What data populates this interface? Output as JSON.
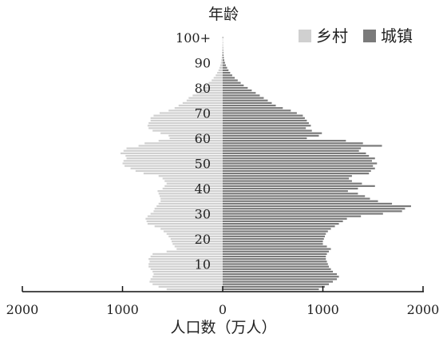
{
  "chart_data": {
    "type": "bar",
    "orientation": "horizontal-population-pyramid",
    "ylabel": "年龄",
    "xlabel": "人口数（万人）",
    "xlim": [
      -2000,
      2000
    ],
    "x_ticks": [
      {
        "value": -2000,
        "label": "2000"
      },
      {
        "value": -1000,
        "label": "1000"
      },
      {
        "value": 0,
        "label": "0"
      },
      {
        "value": 1000,
        "label": "1000"
      },
      {
        "value": 2000,
        "label": "2000"
      }
    ],
    "y_ticks": [
      {
        "value": 10,
        "label": "10"
      },
      {
        "value": 20,
        "label": "20"
      },
      {
        "value": 30,
        "label": "30"
      },
      {
        "value": 40,
        "label": "40"
      },
      {
        "value": 50,
        "label": "50"
      },
      {
        "value": 60,
        "label": "60"
      },
      {
        "value": 70,
        "label": "70"
      },
      {
        "value": 80,
        "label": "80"
      },
      {
        "value": 90,
        "label": "90"
      },
      {
        "value": 100,
        "label": "100+"
      }
    ],
    "legend_position": "top-right",
    "ages": [
      0,
      1,
      2,
      3,
      4,
      5,
      6,
      7,
      8,
      9,
      10,
      11,
      12,
      13,
      14,
      15,
      16,
      17,
      18,
      19,
      20,
      21,
      22,
      23,
      24,
      25,
      26,
      27,
      28,
      29,
      30,
      31,
      32,
      33,
      34,
      35,
      36,
      37,
      38,
      39,
      40,
      41,
      42,
      43,
      44,
      45,
      46,
      47,
      48,
      49,
      50,
      51,
      52,
      53,
      54,
      55,
      56,
      57,
      58,
      59,
      60,
      61,
      62,
      63,
      64,
      65,
      66,
      67,
      68,
      69,
      70,
      71,
      72,
      73,
      74,
      75,
      76,
      77,
      78,
      79,
      80,
      81,
      82,
      83,
      84,
      85,
      86,
      87,
      88,
      89,
      90,
      91,
      92,
      93,
      94,
      95,
      96,
      97,
      98,
      99,
      100
    ],
    "series": [
      {
        "name": "乡村",
        "color": "#d0d0d0",
        "side": "left",
        "values": [
          560,
          640,
          700,
          730,
          720,
          700,
          690,
          700,
          720,
          740,
          740,
          730,
          740,
          720,
          700,
          560,
          460,
          480,
          500,
          510,
          520,
          540,
          560,
          590,
          620,
          680,
          750,
          760,
          770,
          750,
          720,
          690,
          680,
          660,
          640,
          620,
          620,
          630,
          640,
          650,
          600,
          580,
          560,
          580,
          600,
          640,
          790,
          870,
          920,
          980,
          1000,
          990,
          960,
          970,
          1020,
          990,
          960,
          840,
          780,
          640,
          530,
          540,
          620,
          700,
          740,
          750,
          740,
          720,
          720,
          690,
          630,
          540,
          480,
          440,
          400,
          360,
          340,
          300,
          260,
          230,
          200,
          170,
          140,
          110,
          90,
          70,
          55,
          42,
          32,
          24,
          18,
          14,
          10,
          8,
          6,
          5,
          4,
          3,
          2,
          2,
          5
        ]
      },
      {
        "name": "城镇",
        "color": "#7a7a7a",
        "side": "right",
        "values": [
          960,
          1020,
          1060,
          1100,
          1140,
          1160,
          1140,
          1100,
          1080,
          1060,
          1050,
          1040,
          1030,
          1030,
          1040,
          1060,
          1080,
          1040,
          1000,
          1000,
          1010,
          1020,
          1030,
          1050,
          1080,
          1120,
          1160,
          1200,
          1240,
          1380,
          1600,
          1790,
          1820,
          1880,
          1690,
          1550,
          1470,
          1420,
          1350,
          1250,
          1350,
          1520,
          1390,
          1290,
          1260,
          1290,
          1460,
          1480,
          1520,
          1500,
          1540,
          1490,
          1520,
          1460,
          1430,
          1360,
          1380,
          1590,
          1400,
          1230,
          840,
          960,
          990,
          890,
          830,
          880,
          860,
          840,
          820,
          800,
          740,
          680,
          600,
          530,
          490,
          450,
          410,
          370,
          330,
          290,
          250,
          210,
          180,
          150,
          120,
          95,
          75,
          58,
          44,
          32,
          23,
          16,
          11,
          8,
          6,
          4,
          3,
          2,
          2,
          1,
          4
        ]
      }
    ]
  }
}
